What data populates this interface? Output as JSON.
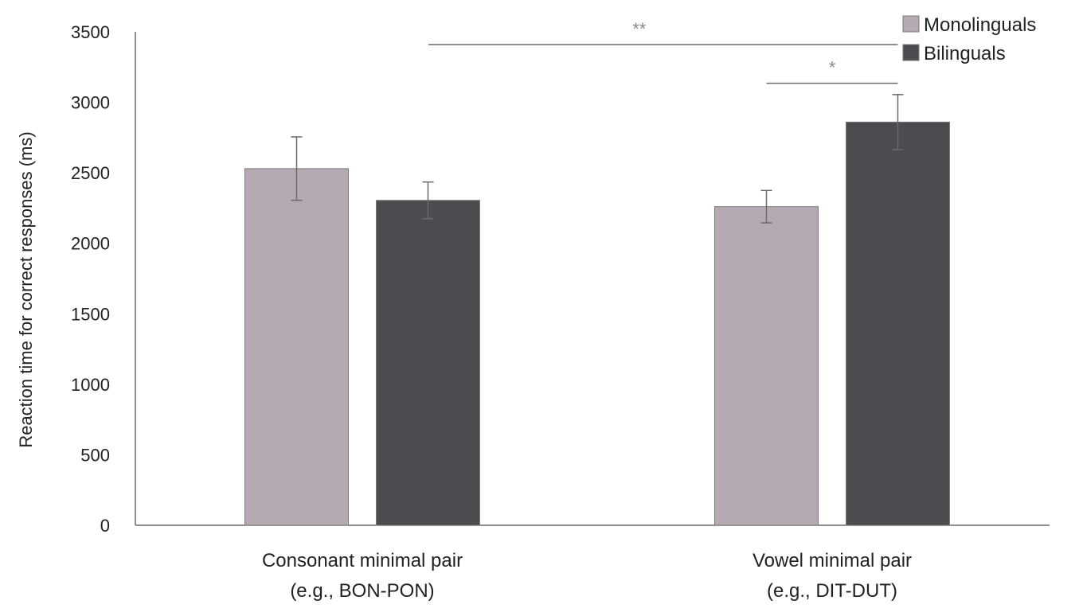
{
  "chart_data": {
    "type": "bar",
    "title": "",
    "xlabel": "",
    "ylabel": "Reaction time for correct responses (ms)",
    "ylim": [
      0,
      3500
    ],
    "yticks": [
      "0",
      "500",
      "1000",
      "1500",
      "2000",
      "2500",
      "3000",
      "3500"
    ],
    "grid": false,
    "legend_position": "top-right",
    "categories": [
      [
        "Consonant  minimal pair",
        "(e.g., BON-PON)"
      ],
      [
        "Vowel minimal pair",
        "(e.g., DIT-DUT)"
      ]
    ],
    "series": [
      {
        "name": "Monolinguals",
        "color": "#b5aab3",
        "values": [
          2530,
          2260
        ],
        "error": [
          225,
          115
        ]
      },
      {
        "name": "Bilinguals",
        "color": "#4d4b50",
        "values": [
          2305,
          2860
        ],
        "error": [
          130,
          195
        ]
      }
    ],
    "annotations": [
      {
        "label": "**",
        "from": {
          "category": 0,
          "series": 1
        },
        "to": {
          "category": 1,
          "series": 1
        },
        "y": 3410
      },
      {
        "label": "*",
        "from": {
          "category": 1,
          "series": 0
        },
        "to": {
          "category": 1,
          "series": 1
        },
        "y": 3135
      }
    ]
  }
}
